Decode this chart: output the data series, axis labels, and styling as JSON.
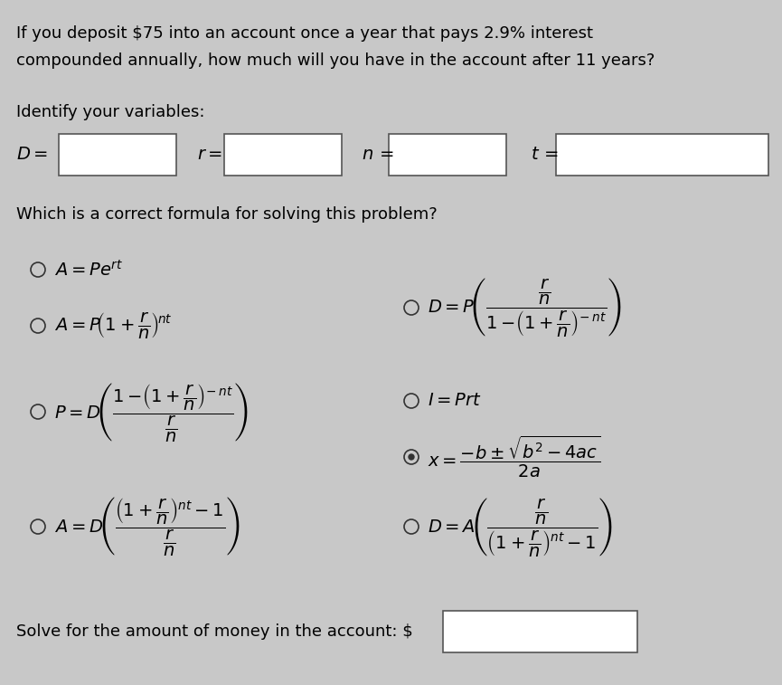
{
  "bg_color": "#c8c8c8",
  "text_color": "#000000",
  "title_line1": "If you deposit $75 into an account once a year that pays 2.9% interest",
  "title_line2": "compounded annually, how much will you have in the account after 11 years?",
  "identify_label": "Identify your variables:",
  "formula_label": "Which is a correct formula for solving this problem?",
  "solve_label": "Solve for the amount of money in the account: $",
  "formula_fontsize": 13,
  "body_fontsize": 13,
  "title_fontsize": 13
}
